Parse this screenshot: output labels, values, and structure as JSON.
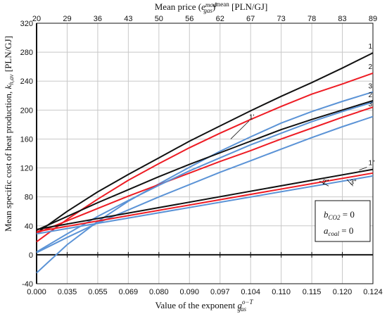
{
  "chart_data": {
    "type": "line",
    "x_bottom_label_prefix": "Value of the exponent ",
    "x_bottom_label_var": "a",
    "x_bottom_label_sub": "gas",
    "x_bottom_label_sup": "o−T",
    "x_top_label_prefix": "Mean price (",
    "x_top_label_var": "e",
    "x_top_label_sub": "gas",
    "x_top_label_sup": "mod",
    "x_top_label_mid": ")",
    "x_top_label_sup2": "mean",
    "x_top_label_suffix": " [PLN/GJ]",
    "ylabel_prefix": "Mean specific cost of heat production, ",
    "ylabel_var": "k",
    "ylabel_sub": "h,av",
    "ylabel_suffix": " [PLN/GJ]",
    "x_bottom_ticks": [
      "0.000",
      "0.035",
      "0.055",
      "0.069",
      "0.080",
      "0.090",
      "0.097",
      "0.104",
      "0.110",
      "0.115",
      "0.120",
      "0.124"
    ],
    "x_top_ticks": [
      "20",
      "29",
      "36",
      "43",
      "50",
      "56",
      "62",
      "67",
      "73",
      "78",
      "83",
      "89"
    ],
    "y_ticks": [
      "-40",
      "0",
      "40",
      "80",
      "120",
      "160",
      "200",
      "240",
      "280",
      "320"
    ],
    "ylim": [
      -40,
      320
    ],
    "x_index_range": [
      0,
      11
    ],
    "grid": true,
    "legend": {
      "placement": "bottom-right",
      "line1_var": "b",
      "line1_sub": "CO2",
      "line1_rhs": " = 0",
      "line2_var": "a",
      "line2_sub": "coal",
      "line2_rhs": " = 0"
    },
    "colors": {
      "black": "#111111",
      "red": "#ee1c24",
      "blue": "#5b93d6"
    },
    "series": [
      {
        "name": "1",
        "color": "black",
        "x": [
          0,
          1,
          2,
          3,
          4,
          5,
          6,
          7,
          8,
          9,
          10,
          11
        ],
        "y": [
          30,
          60,
          87,
          111,
          134,
          157,
          178,
          199,
          219,
          238,
          258,
          279
        ],
        "label_x": 10.85,
        "label_y": 285
      },
      {
        "name": "2",
        "color": "red",
        "x": [
          0,
          1,
          2,
          3,
          4,
          5,
          6,
          7,
          8,
          9,
          10,
          11
        ],
        "y": [
          18,
          49,
          77,
          103,
          126,
          148,
          168,
          187,
          205,
          222,
          236,
          251
        ],
        "label_x": 10.85,
        "label_y": 257
      },
      {
        "name": "3",
        "color": "blue",
        "x": [
          0,
          1,
          2,
          3,
          4,
          5,
          6,
          7,
          8,
          9,
          10,
          11
        ],
        "y": [
          -25,
          14,
          46,
          74,
          98,
          121,
          143,
          163,
          182,
          198,
          212,
          225
        ],
        "label_x": 10.85,
        "label_y": 230
      },
      {
        "name": "2'",
        "color": "black",
        "x": [
          0,
          1,
          2,
          3,
          4,
          5,
          6,
          7,
          8,
          9,
          10,
          11
        ],
        "y": [
          34,
          53,
          72,
          90,
          108,
          125,
          141,
          157,
          173,
          187,
          200,
          213
        ],
        "label_x": 10.85,
        "label_y": 218
      },
      {
        "name": "3'",
        "color": "red",
        "x": [
          0,
          1,
          2,
          3,
          4,
          5,
          6,
          7,
          8,
          9,
          10,
          11
        ],
        "y": [
          30,
          47,
          64,
          81,
          97,
          113,
          129,
          144,
          160,
          175,
          190,
          204
        ],
        "label_x": 10.85,
        "label_y": 205
      },
      {
        "name": "",
        "color": "blue",
        "x": [
          0,
          1,
          2,
          3,
          4,
          5,
          6,
          7,
          8,
          9,
          10,
          11
        ],
        "y": [
          3,
          24,
          44,
          62,
          80,
          97,
          114,
          130,
          146,
          162,
          177,
          191
        ]
      },
      {
        "name": "1'",
        "color": "blue",
        "x": [
          0,
          1,
          2,
          3,
          4,
          5,
          6,
          7,
          8,
          9,
          10,
          11
        ],
        "y": [
          4,
          29,
          53,
          75,
          96,
          116,
          134,
          152,
          168,
          184,
          198,
          211
        ],
        "label_x": 6.95,
        "label_y": 187
      },
      {
        "name": "1\"",
        "color": "black",
        "x": [
          0,
          11
        ],
        "y": [
          35,
          118
        ],
        "label_x": 10.85,
        "label_y": 124
      },
      {
        "name": "",
        "color": "red",
        "x": [
          0,
          11
        ],
        "y": [
          32,
          113
        ]
      },
      {
        "name": "",
        "color": "blue",
        "x": [
          0,
          11
        ],
        "y": [
          29,
          109
        ]
      },
      {
        "name": "2\"",
        "color": "none",
        "x": [],
        "y": [],
        "label_x": 9.35,
        "label_y": 97
      },
      {
        "name": "3\"",
        "color": "none",
        "x": [],
        "y": [],
        "label_x": 10.25,
        "label_y": 97
      }
    ]
  }
}
